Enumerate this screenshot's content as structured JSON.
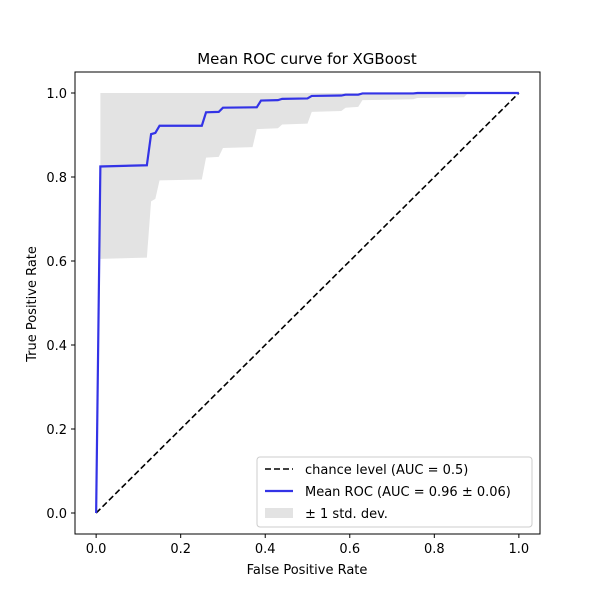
{
  "chart_data": {
    "type": "line",
    "title": "Mean ROC curve for XGBoost",
    "xlabel": "False Positive Rate",
    "ylabel": "True Positive Rate",
    "xlim": [
      -0.05,
      1.05
    ],
    "ylim": [
      -0.05,
      1.05
    ],
    "xticks": [
      "0.0",
      "0.2",
      "0.4",
      "0.6",
      "0.8",
      "1.0"
    ],
    "yticks": [
      "0.0",
      "0.2",
      "0.4",
      "0.6",
      "0.8",
      "1.0"
    ],
    "grid": false,
    "legend_position": "lower-right",
    "series": [
      {
        "name": "chance level (AUC = 0.5)",
        "style": "dashed",
        "color": "#000000",
        "x": [
          0,
          1
        ],
        "y": [
          0,
          1
        ]
      },
      {
        "name": "Mean ROC (AUC = 0.96 ± 0.06)",
        "style": "solid",
        "color": "#3333e6",
        "x": [
          0,
          0.01,
          0.12,
          0.13,
          0.14,
          0.15,
          0.25,
          0.26,
          0.29,
          0.3,
          0.38,
          0.39,
          0.43,
          0.44,
          0.5,
          0.51,
          0.58,
          0.59,
          0.62,
          0.63,
          0.75,
          0.76,
          1.0
        ],
        "y": [
          0,
          0.825,
          0.828,
          0.902,
          0.905,
          0.922,
          0.922,
          0.954,
          0.955,
          0.965,
          0.966,
          0.982,
          0.983,
          0.986,
          0.987,
          0.993,
          0.994,
          0.996,
          0.996,
          0.999,
          0.999,
          1.0,
          1.0
        ]
      },
      {
        "name": "± 1 std. dev.",
        "style": "band",
        "color": "#d9d9d9",
        "x": [
          0.01,
          0.12,
          0.13,
          0.14,
          0.15,
          0.25,
          0.26,
          0.29,
          0.3,
          0.37,
          0.38,
          0.43,
          0.44,
          0.5,
          0.51,
          0.58,
          0.59,
          0.62,
          0.63,
          0.75,
          0.76,
          0.87,
          0.88,
          1.0
        ],
        "lower": [
          0.605,
          0.608,
          0.742,
          0.748,
          0.792,
          0.794,
          0.846,
          0.848,
          0.869,
          0.871,
          0.914,
          0.916,
          0.925,
          0.927,
          0.955,
          0.957,
          0.965,
          0.967,
          0.983,
          0.985,
          0.988,
          0.99,
          1.0,
          1.0
        ],
        "upper": [
          1.0,
          1.0,
          1.0,
          1.0,
          1.0,
          1.0,
          1.0,
          1.0,
          1.0,
          1.0,
          1.0,
          1.0,
          1.0,
          1.0,
          1.0,
          1.0,
          1.0,
          1.0,
          1.0,
          1.0,
          1.0,
          1.0,
          1.0,
          1.0
        ]
      }
    ]
  }
}
